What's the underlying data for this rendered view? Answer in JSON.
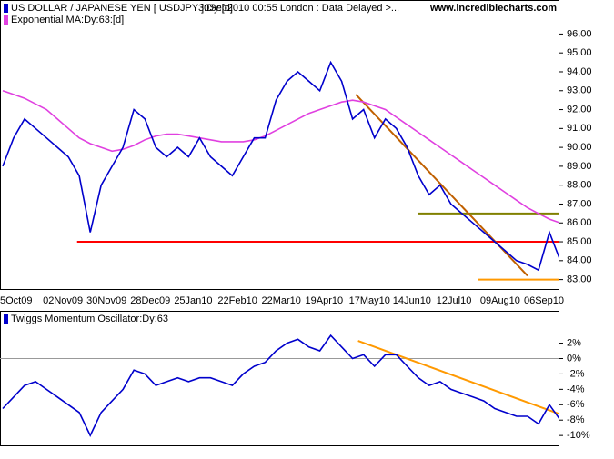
{
  "chart_data": [
    {
      "type": "line",
      "subtitle": "30Sep2010 00:55 London : Data Delayed >...",
      "source": "www.incrediblecharts.com",
      "categories": [
        "5Oct09",
        null,
        null,
        null,
        "02Nov09",
        null,
        null,
        null,
        "30Nov09",
        null,
        null,
        null,
        "28Dec09",
        null,
        null,
        null,
        "25Jan10",
        null,
        null,
        null,
        "22Feb10",
        null,
        null,
        null,
        "22Mar10",
        null,
        null,
        null,
        "19Apr10",
        null,
        null,
        null,
        "17May10",
        null,
        null,
        null,
        "14Jun10",
        null,
        null,
        null,
        "12Jul10",
        null,
        null,
        null,
        "09Aug10",
        null,
        null,
        null,
        "06Sep10",
        null,
        null,
        null
      ],
      "series": [
        {
          "name": "US DOLLAR / JAPANESE YEN [ USDJPY ]:Dy:[d]",
          "color": "#0000cc",
          "values": [
            89.0,
            90.5,
            91.5,
            91.0,
            90.5,
            90.0,
            89.5,
            88.5,
            85.5,
            88.0,
            89.0,
            90.0,
            92.0,
            91.5,
            90.0,
            89.5,
            90.0,
            89.5,
            90.5,
            89.5,
            89.0,
            88.5,
            89.5,
            90.5,
            90.5,
            92.5,
            93.5,
            94.0,
            93.5,
            93.0,
            94.5,
            93.5,
            91.5,
            92.0,
            90.5,
            91.5,
            91.0,
            90.0,
            88.5,
            87.5,
            88.0,
            87.0,
            86.5,
            86.0,
            85.5,
            85.0,
            84.5,
            84.0,
            83.8,
            83.5,
            85.5,
            84.0
          ]
        },
        {
          "name": "Exponential MA:Dy:63:[d]",
          "color": "#e040e0",
          "values": [
            93.0,
            92.8,
            92.6,
            92.3,
            92.0,
            91.5,
            91.0,
            90.5,
            90.2,
            90.0,
            89.8,
            89.9,
            90.1,
            90.4,
            90.6,
            90.7,
            90.7,
            90.6,
            90.5,
            90.4,
            90.3,
            90.3,
            90.3,
            90.4,
            90.6,
            90.9,
            91.2,
            91.5,
            91.8,
            92.0,
            92.2,
            92.4,
            92.5,
            92.4,
            92.2,
            92.0,
            91.6,
            91.2,
            90.8,
            90.4,
            90.0,
            89.6,
            89.2,
            88.8,
            88.4,
            88.0,
            87.6,
            87.2,
            86.8,
            86.5,
            86.2,
            86.0
          ]
        }
      ],
      "lines": [
        {
          "color": "#ff0000",
          "x": [
            6.8,
            51.5
          ],
          "y": [
            85,
            85
          ]
        },
        {
          "color": "#808000",
          "x": [
            38,
            51.5
          ],
          "y": [
            86.5,
            86.5
          ]
        },
        {
          "color": "#ff9900",
          "x": [
            43.5,
            51.5
          ],
          "y": [
            83,
            83
          ]
        },
        {
          "color": "#c06000",
          "x": [
            32.3,
            48
          ],
          "y": [
            92.8,
            83.2
          ]
        }
      ],
      "ylim": [
        82.5,
        97.8
      ],
      "yticks": [
        {
          "value": 83,
          "label": "83.00"
        },
        {
          "value": 84,
          "label": "84.00"
        },
        {
          "value": 85,
          "label": "85.00"
        },
        {
          "value": 86,
          "label": "86.00"
        },
        {
          "value": 87,
          "label": "87.00"
        },
        {
          "value": 88,
          "label": "88.00"
        },
        {
          "value": 89,
          "label": "89.00"
        },
        {
          "value": 90,
          "label": "90.00"
        },
        {
          "value": 91,
          "label": "91.00"
        },
        {
          "value": 92,
          "label": "92.00"
        },
        {
          "value": 93,
          "label": "93.00"
        },
        {
          "value": 94,
          "label": "94.00"
        },
        {
          "value": 95,
          "label": "95.00"
        },
        {
          "value": 96,
          "label": "96.00"
        }
      ]
    },
    {
      "type": "line",
      "series": [
        {
          "name": "Twiggs Momentum Oscillator:Dy:63",
          "color": "#0000cc",
          "values": [
            -6.5,
            -5,
            -3.5,
            -3,
            -4,
            -5,
            -6,
            -7,
            -10,
            -7,
            -5.5,
            -4,
            -1.5,
            -2,
            -3.5,
            -3,
            -2.5,
            -3,
            -2.5,
            -2.5,
            -3,
            -3.5,
            -2,
            -1,
            -0.5,
            1,
            2,
            2.5,
            1.5,
            1,
            3,
            1.5,
            0,
            0.5,
            -1,
            0.5,
            0.5,
            -1,
            -2.5,
            -3.5,
            -3,
            -4,
            -4.5,
            -5,
            -5.5,
            -6.5,
            -7,
            -7.5,
            -7.5,
            -8.5,
            -6,
            -8
          ]
        }
      ],
      "lines": [
        {
          "color": "#ff9900",
          "x": [
            32.5,
            51.5
          ],
          "y": [
            2.3,
            -7.5
          ]
        }
      ],
      "zero_line": true,
      "ylim": [
        -11.4,
        6.2
      ],
      "yticks": [
        {
          "value": 2,
          "label": "2%"
        },
        {
          "value": 0,
          "label": "0%"
        },
        {
          "value": -2,
          "label": "-2%"
        },
        {
          "value": -4,
          "label": "-4%"
        },
        {
          "value": -6,
          "label": "-6%"
        },
        {
          "value": -8,
          "label": "-8%"
        },
        {
          "value": -10,
          "label": "-10%"
        }
      ]
    }
  ]
}
